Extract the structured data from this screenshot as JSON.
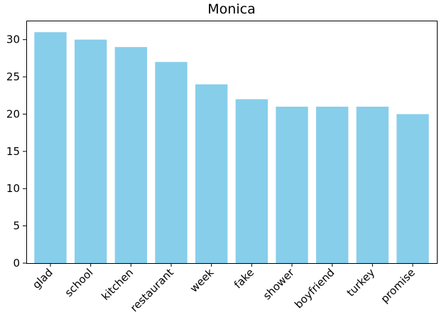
{
  "chart_data": {
    "type": "bar",
    "title": "Monica",
    "xlabel": "",
    "ylabel": "",
    "categories": [
      "glad",
      "school",
      "kitchen",
      "restaurant",
      "week",
      "fake",
      "shower",
      "boyfriend",
      "turkey",
      "promise"
    ],
    "values": [
      31,
      30,
      29,
      27,
      24,
      22,
      21,
      21,
      21,
      20
    ],
    "ylim": [
      0,
      32.55
    ],
    "yticks": [
      0,
      5,
      10,
      15,
      20,
      25,
      30
    ],
    "ytick_labels": [
      "0",
      "5",
      "10",
      "15",
      "20",
      "25",
      "30"
    ],
    "bar_color": "#87ceeb",
    "grid": false,
    "legend": "none"
  }
}
